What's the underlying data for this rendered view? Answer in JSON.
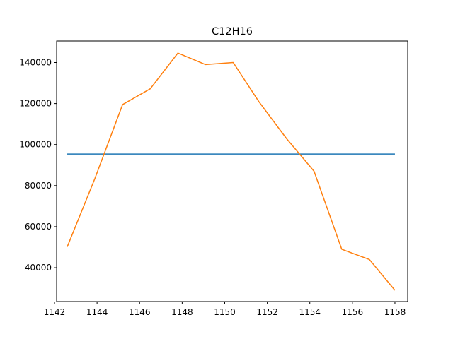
{
  "chart_data": {
    "type": "line",
    "title": "C12H16",
    "xlabel": "",
    "ylabel": "",
    "xlim": [
      1142.1,
      1158.6
    ],
    "ylim": [
      23500,
      150500
    ],
    "xticks": [
      1142,
      1144,
      1146,
      1148,
      1150,
      1152,
      1154,
      1156,
      1158
    ],
    "yticks": [
      40000,
      60000,
      80000,
      100000,
      120000,
      140000
    ],
    "grid": false,
    "series": [
      {
        "color": "#1f77b4",
        "x": [
          1142.6,
          1158.0
        ],
        "y": [
          95400,
          95400
        ]
      },
      {
        "color": "#ff7f0e",
        "x": [
          1142.6,
          1143.9,
          1145.2,
          1146.5,
          1147.8,
          1149.1,
          1150.4,
          1151.6,
          1152.9,
          1154.2,
          1155.5,
          1156.8,
          1158.0
        ],
        "y": [
          50200,
          83500,
          119500,
          127200,
          144600,
          139000,
          140000,
          121000,
          103000,
          87000,
          49000,
          44000,
          29000
        ]
      }
    ]
  }
}
